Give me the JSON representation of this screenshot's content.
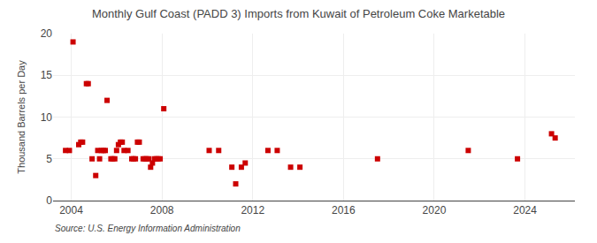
{
  "chart_data": {
    "type": "scatter",
    "title": "Monthly Gulf Coast (PADD 3) Imports from Kuwait of Petroleum Coke Marketable",
    "ylabel": "Thousand Barrels per Day",
    "annotations": [
      "Source: U.S. Energy Information Administration"
    ],
    "color": "#cc0000",
    "marker": "square",
    "grid": true,
    "xlim": [
      2003.2,
      2026.2
    ],
    "xticks": [
      2004,
      2008,
      2012,
      2016,
      2020,
      2024
    ],
    "ylim": [
      0,
      20
    ],
    "yticks": [
      0,
      5,
      10,
      15,
      20
    ],
    "x": [
      2003.75,
      2003.92,
      2004.08,
      2004.33,
      2004.42,
      2004.5,
      2004.67,
      2004.75,
      2004.92,
      2005.08,
      2005.17,
      2005.25,
      2005.33,
      2005.42,
      2005.5,
      2005.58,
      2005.75,
      2005.83,
      2005.92,
      2006.0,
      2006.08,
      2006.17,
      2006.25,
      2006.33,
      2006.5,
      2006.67,
      2006.75,
      2006.83,
      2006.92,
      2007.0,
      2007.17,
      2007.25,
      2007.33,
      2007.42,
      2007.5,
      2007.58,
      2007.67,
      2007.75,
      2007.83,
      2007.92,
      2008.08,
      2010.08,
      2010.5,
      2011.08,
      2011.25,
      2011.5,
      2011.67,
      2012.67,
      2013.08,
      2013.67,
      2014.08,
      2017.5,
      2021.5,
      2023.67,
      2025.17,
      2025.33
    ],
    "values": [
      6.0,
      6.0,
      19.0,
      6.7,
      7.0,
      7.0,
      14.0,
      14.0,
      5.0,
      3.0,
      6.0,
      5.0,
      6.0,
      6.0,
      6.0,
      12.0,
      5.0,
      5.0,
      5.0,
      6.0,
      6.7,
      7.0,
      7.0,
      6.0,
      6.0,
      5.0,
      5.0,
      5.0,
      7.0,
      7.0,
      5.0,
      5.0,
      5.0,
      5.0,
      4.0,
      4.5,
      5.0,
      5.0,
      5.0,
      5.0,
      11.0,
      6.0,
      6.0,
      4.0,
      2.0,
      4.0,
      4.5,
      6.0,
      6.0,
      4.0,
      4.0,
      5.0,
      6.0,
      5.0,
      8.0,
      7.5
    ]
  }
}
